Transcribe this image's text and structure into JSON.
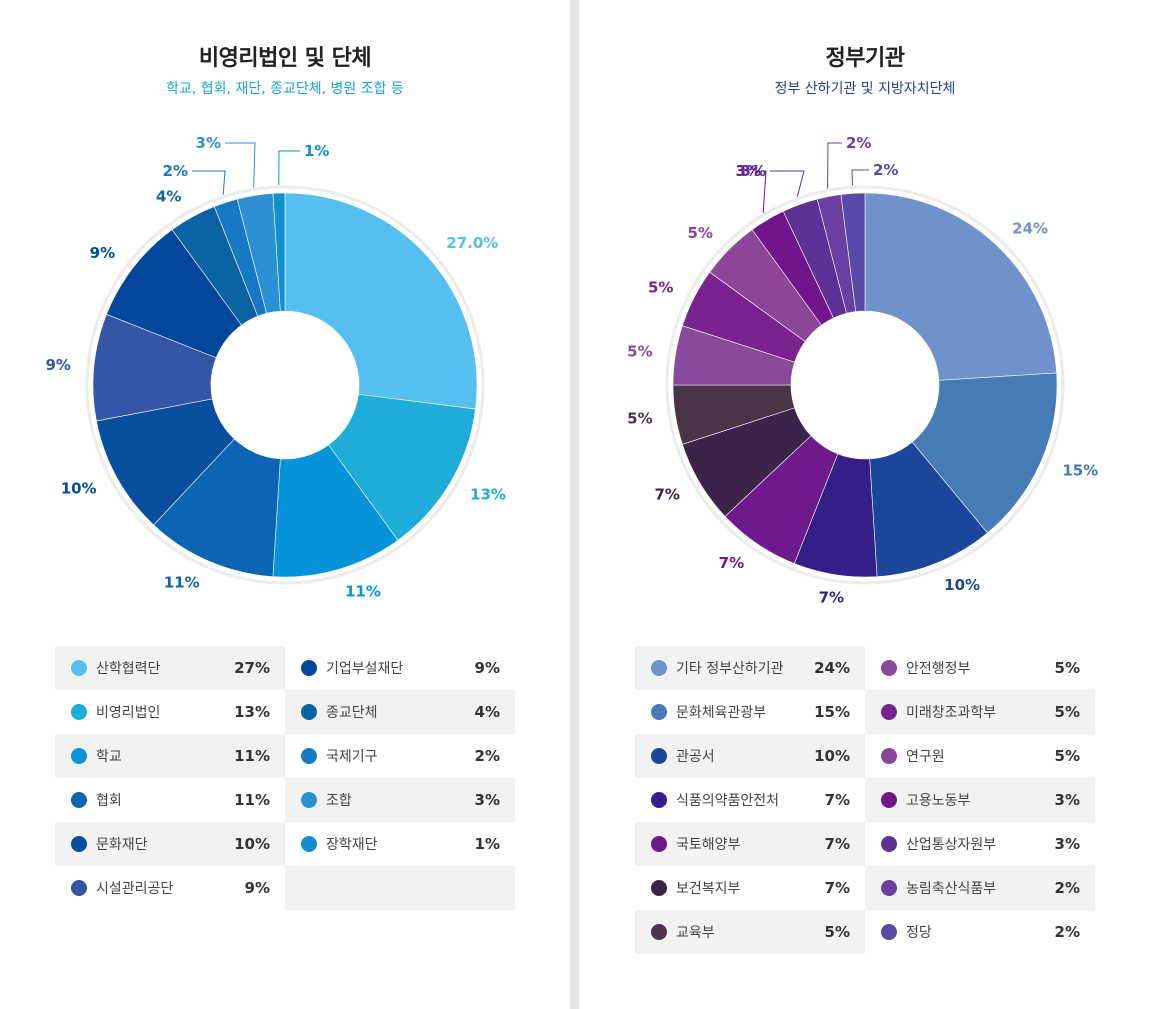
{
  "chart_data": [
    {
      "type": "pie",
      "title": "비영리법인 및 단체",
      "subtitle": "학교, 협회, 재단, 종교단체, 병원 조합 등",
      "slices": [
        {
          "label": "산학협력단",
          "value": 27.0,
          "display": "27.0%",
          "legend_value": "27%",
          "color": "#55c0f0"
        },
        {
          "label": "비영리법인",
          "value": 13,
          "display": "13%",
          "legend_value": "13%",
          "color": "#1eadd9"
        },
        {
          "label": "학교",
          "value": 11,
          "display": "11%",
          "legend_value": "11%",
          "color": "#0793da"
        },
        {
          "label": "협회",
          "value": 11,
          "display": "11%",
          "legend_value": "11%",
          "color": "#0a66b5"
        },
        {
          "label": "문화재단",
          "value": 10,
          "display": "10%",
          "legend_value": "10%",
          "color": "#074e9e"
        },
        {
          "label": "시설관리공단",
          "value": 9,
          "display": "9%",
          "legend_value": "9%",
          "color": "#3556a6"
        },
        {
          "label": "기업부설재단",
          "value": 9,
          "display": "9%",
          "legend_value": "9%",
          "color": "#03479c"
        },
        {
          "label": "종교단체",
          "value": 4,
          "display": "4%",
          "legend_value": "4%",
          "color": "#0b63a3"
        },
        {
          "label": "국제기구",
          "value": 2,
          "display": "2%",
          "legend_value": "2%",
          "color": "#1679c6"
        },
        {
          "label": "조합",
          "value": 3,
          "display": "3%",
          "legend_value": "3%",
          "color": "#2c91d4"
        },
        {
          "label": "장학재단",
          "value": 1,
          "display": "1%",
          "legend_value": "1%",
          "color": "#128ed3"
        }
      ]
    },
    {
      "type": "pie",
      "title": "정부기관",
      "subtitle": "정부 산하기관 및 지방자치단체",
      "slices": [
        {
          "label": "기타 정부산하기관",
          "value": 24,
          "display": "24%",
          "legend_value": "24%",
          "color": "#6f92cd"
        },
        {
          "label": "문화체육관광부",
          "value": 15,
          "display": "15%",
          "legend_value": "15%",
          "color": "#467bb8"
        },
        {
          "label": "관공서",
          "value": 10,
          "display": "10%",
          "legend_value": "10%",
          "color": "#1c469b"
        },
        {
          "label": "식품의약품안전처",
          "value": 7,
          "display": "7%",
          "legend_value": "7%",
          "color": "#331f86"
        },
        {
          "label": "국토해양부",
          "value": 7,
          "display": "7%",
          "legend_value": "7%",
          "color": "#6e1a8c"
        },
        {
          "label": "보건복지부",
          "value": 7,
          "display": "7%",
          "legend_value": "7%",
          "color": "#3b2447"
        },
        {
          "label": "교육부",
          "value": 5,
          "display": "5%",
          "legend_value": "5%",
          "color": "#4a3449"
        },
        {
          "label": "안전행정부",
          "value": 5,
          "display": "5%",
          "legend_value": "5%",
          "color": "#8a4a9c"
        },
        {
          "label": "미래창조과학부",
          "value": 5,
          "display": "5%",
          "legend_value": "5%",
          "color": "#7a2390"
        },
        {
          "label": "연구원",
          "value": 5,
          "display": "5%",
          "legend_value": "5%",
          "color": "#8c4599"
        },
        {
          "label": "고용노동부",
          "value": 3,
          "display": "3%",
          "legend_value": "3%",
          "color": "#71168a"
        },
        {
          "label": "산업통상자원부",
          "value": 3,
          "display": "3%",
          "legend_value": "3%",
          "color": "#5d3295"
        },
        {
          "label": "농림축산식품부",
          "value": 2,
          "display": "2%",
          "legend_value": "2%",
          "color": "#6a40a0"
        },
        {
          "label": "정당",
          "value": 2,
          "display": "2%",
          "legend_value": "2%",
          "color": "#5a4aa8"
        }
      ]
    }
  ]
}
